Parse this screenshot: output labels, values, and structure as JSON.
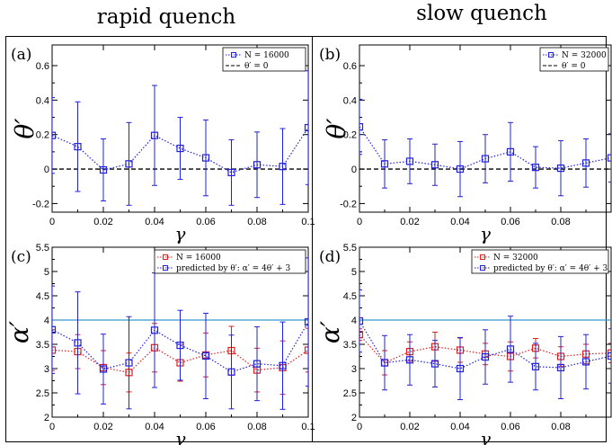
{
  "titles": {
    "left": "rapid quench",
    "right": "slow quench"
  },
  "colors": {
    "blue": "#2020dd",
    "red": "#dd2020",
    "cyan": "#3399cc",
    "black": "#000000"
  },
  "chart_data": [
    {
      "panel": "(a)",
      "type": "line",
      "xlabel": "γ",
      "ylabel": "θ′",
      "xlim": [
        0,
        0.1
      ],
      "ylim": [
        -0.25,
        0.72
      ],
      "xticks": [
        0,
        0.02,
        0.04,
        0.06,
        0.08,
        0.1
      ],
      "xticklabels": [
        "0",
        "0.02",
        "0.04",
        "0.06",
        "0.08",
        "0.1"
      ],
      "yticks": [
        -0.2,
        0,
        0.2,
        0.4,
        0.6
      ],
      "yticklabels": [
        "-0.2",
        "0",
        "0.2",
        "0.4",
        "0.6"
      ],
      "legend": "top-right",
      "series": [
        {
          "name": "N = 16000",
          "color": "#2020dd",
          "x": [
            0,
            0.01,
            0.02,
            0.03,
            0.04,
            0.05,
            0.06,
            0.07,
            0.08,
            0.09,
            0.1
          ],
          "y": [
            0.195,
            0.13,
            -0.005,
            0.03,
            0.195,
            0.12,
            0.065,
            -0.02,
            0.025,
            0.015,
            0.24
          ],
          "err": [
            0.22,
            0.26,
            0.18,
            0.24,
            0.29,
            0.18,
            0.22,
            0.19,
            0.19,
            0.22,
            0.33
          ]
        }
      ],
      "hlines": [
        {
          "name": "θ′ = 0",
          "y": 0,
          "style": "dashed",
          "color": "#000000"
        }
      ]
    },
    {
      "panel": "(b)",
      "type": "line",
      "xlabel": "γ",
      "ylabel": "θ′",
      "xlim": [
        0,
        0.1
      ],
      "ylim": [
        -0.25,
        0.72
      ],
      "xticks": [
        0,
        0.02,
        0.04,
        0.06,
        0.08,
        0.1
      ],
      "xticklabels": [
        "0",
        "0.02",
        "0.04",
        "0.06",
        "0.08",
        "0.1"
      ],
      "yticks": [
        -0.2,
        0,
        0.2,
        0.4,
        0.6
      ],
      "yticklabels": [
        "-0.2",
        "0",
        "0.2",
        "0.4",
        "0.6"
      ],
      "legend": "top-right",
      "series": [
        {
          "name": "N = 32000",
          "color": "#2020dd",
          "x": [
            0,
            0.01,
            0.02,
            0.03,
            0.04,
            0.05,
            0.06,
            0.07,
            0.08,
            0.09,
            0.1
          ],
          "y": [
            0.245,
            0.03,
            0.045,
            0.025,
            0.0,
            0.06,
            0.1,
            0.01,
            0.005,
            0.035,
            0.065
          ],
          "err": [
            0.16,
            0.14,
            0.13,
            0.12,
            0.16,
            0.14,
            0.17,
            0.12,
            0.16,
            0.14,
            0.14
          ]
        }
      ],
      "hlines": [
        {
          "name": "θ′ = 0",
          "y": 0,
          "style": "dashed",
          "color": "#000000"
        }
      ]
    },
    {
      "panel": "(c)",
      "type": "line",
      "xlabel": "γ",
      "ylabel": "α′",
      "xlim": [
        0,
        0.1
      ],
      "ylim": [
        2,
        5.5
      ],
      "xticks": [
        0,
        0.02,
        0.04,
        0.06,
        0.08,
        0.1
      ],
      "xticklabels": [
        "0",
        "0.02",
        "0.04",
        "0.06",
        "0.08",
        "0.1"
      ],
      "yticks": [
        2,
        2.5,
        3,
        3.5,
        4,
        4.5,
        5,
        5.5
      ],
      "yticklabels": [
        "2",
        "2.5",
        "3",
        "3.5",
        "4",
        "4.5",
        "5",
        "5.5"
      ],
      "legend": "top-right",
      "series": [
        {
          "name": "N = 16000",
          "color": "#dd2020",
          "x": [
            0,
            0.01,
            0.02,
            0.03,
            0.04,
            0.05,
            0.06,
            0.07,
            0.08,
            0.09,
            0.1
          ],
          "y": [
            3.38,
            3.35,
            3.02,
            2.92,
            3.43,
            3.12,
            3.28,
            3.37,
            2.97,
            3.02,
            3.38
          ],
          "err": [
            0.42,
            0.35,
            0.35,
            0.4,
            0.5,
            0.38,
            0.45,
            0.5,
            0.45,
            0.55,
            0.45
          ]
        },
        {
          "name": "predicted by θ′: α′ = 4θ′ + 3",
          "color": "#2020dd",
          "x": [
            0,
            0.01,
            0.02,
            0.03,
            0.04,
            0.05,
            0.06,
            0.07,
            0.08,
            0.09,
            0.1
          ],
          "y": [
            3.8,
            3.53,
            2.99,
            3.12,
            3.79,
            3.48,
            3.26,
            2.93,
            3.1,
            3.06,
            3.96
          ],
          "err": [
            0.9,
            1.05,
            0.72,
            0.95,
            1.18,
            0.72,
            0.88,
            0.76,
            0.76,
            0.9,
            1.32
          ]
        }
      ],
      "hlines": [
        {
          "y": 4,
          "style": "solid",
          "color": "#3399cc"
        }
      ]
    },
    {
      "panel": "(d)",
      "type": "line",
      "xlabel": "γ",
      "ylabel": "α′",
      "xlim": [
        0,
        0.1
      ],
      "ylim": [
        2,
        5.5
      ],
      "xticks": [
        0,
        0.02,
        0.04,
        0.06,
        0.08,
        0.1
      ],
      "xticklabels": [
        "0",
        "0.02",
        "0.04",
        "0.06",
        "0.08",
        "0.1"
      ],
      "yticks": [
        2,
        2.5,
        3,
        3.5,
        4,
        4.5,
        5,
        5.5
      ],
      "yticklabels": [
        "2",
        "2.5",
        "3",
        "3.5",
        "4",
        "4.5",
        "5",
        "5.5"
      ],
      "legend": "top-right",
      "series": [
        {
          "name": "N = 32000",
          "color": "#dd2020",
          "x": [
            0,
            0.01,
            0.02,
            0.03,
            0.04,
            0.05,
            0.06,
            0.07,
            0.08,
            0.09,
            0.1
          ],
          "y": [
            3.7,
            3.12,
            3.35,
            3.45,
            3.38,
            3.3,
            3.25,
            3.42,
            3.25,
            3.3,
            3.32
          ],
          "err": [
            0.12,
            0.25,
            0.2,
            0.3,
            0.25,
            0.22,
            0.3,
            0.2,
            0.2,
            0.2,
            0.2
          ]
        },
        {
          "name": "predicted by θ′: α′ = 4θ′ + 3",
          "color": "#2020dd",
          "x": [
            0,
            0.01,
            0.02,
            0.03,
            0.04,
            0.05,
            0.06,
            0.07,
            0.08,
            0.09,
            0.1
          ],
          "y": [
            3.98,
            3.12,
            3.18,
            3.1,
            3.0,
            3.24,
            3.4,
            3.04,
            3.02,
            3.14,
            3.26
          ],
          "err": [
            0.64,
            0.56,
            0.52,
            0.48,
            0.64,
            0.56,
            0.68,
            0.48,
            0.64,
            0.56,
            0.56
          ]
        }
      ],
      "hlines": [
        {
          "y": 4,
          "style": "solid",
          "color": "#3399cc"
        }
      ]
    }
  ]
}
